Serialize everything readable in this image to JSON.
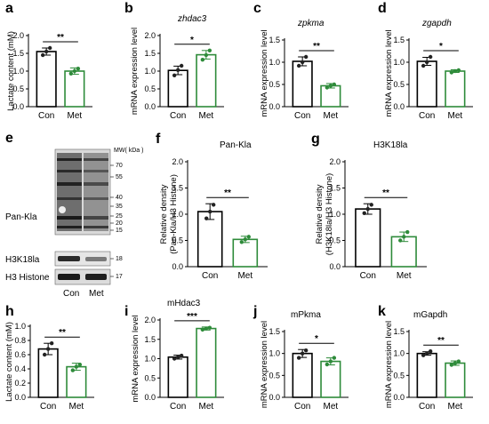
{
  "colors": {
    "control": "#000000",
    "treatment": "#2e8b3a",
    "dot_ctrl": "#222222",
    "dot_treat": "#2e8b3a"
  },
  "blot": {
    "letter": "e",
    "mw_header": "MW( kDa )",
    "markers": [
      "70",
      "55",
      "40",
      "35",
      "25",
      "20",
      "15",
      "18",
      "17"
    ],
    "row_labels": [
      "Pan-Kla",
      "H3K18la",
      "H3 Histone"
    ],
    "lanes": [
      "Con",
      "Met"
    ]
  },
  "chart_data": [
    {
      "id": "a",
      "type": "bar",
      "title": "",
      "title_italic": false,
      "ylabel": "Lactate content (mM)",
      "categories": [
        "Con",
        "Met"
      ],
      "values": [
        1.55,
        1.0
      ],
      "errors": [
        0.1,
        0.09
      ],
      "points": [
        [
          1.45,
          1.55,
          1.65
        ],
        [
          0.93,
          1.0,
          1.07
        ]
      ],
      "ylim": [
        0,
        2.0
      ],
      "yticks": [
        "0.0",
        "0.5",
        "1.0",
        "1.5",
        "2.0"
      ],
      "sig": "**"
    },
    {
      "id": "b",
      "type": "bar",
      "title": "zhdac3",
      "title_italic": true,
      "ylabel": "mRNA expression level",
      "categories": [
        "Con",
        "Met"
      ],
      "values": [
        1.02,
        1.46
      ],
      "errors": [
        0.12,
        0.12
      ],
      "points": [
        [
          0.88,
          1.03,
          1.15
        ],
        [
          1.32,
          1.45,
          1.58
        ]
      ],
      "ylim": [
        0,
        2.0
      ],
      "yticks": [
        "0.0",
        "0.5",
        "1.0",
        "1.5",
        "2.0"
      ],
      "sig": "*"
    },
    {
      "id": "c",
      "type": "bar",
      "title": "zpkma",
      "title_italic": true,
      "ylabel": "mRNA expression level",
      "categories": [
        "Con",
        "Met"
      ],
      "values": [
        1.02,
        0.47
      ],
      "errors": [
        0.1,
        0.05
      ],
      "points": [
        [
          0.92,
          1.0,
          1.12
        ],
        [
          0.43,
          0.47,
          0.5
        ]
      ],
      "ylim": [
        0,
        1.5
      ],
      "yticks": [
        "0.0",
        "0.5",
        "1.0",
        "1.5"
      ],
      "sig": "**"
    },
    {
      "id": "d",
      "type": "bar",
      "title": "zgapdh",
      "title_italic": true,
      "ylabel": "mRNA expression level",
      "categories": [
        "Con",
        "Met"
      ],
      "values": [
        1.02,
        0.8
      ],
      "errors": [
        0.09,
        0.03
      ],
      "points": [
        [
          0.92,
          1.0,
          1.12
        ],
        [
          0.77,
          0.8,
          0.82
        ]
      ],
      "ylim": [
        0,
        1.5
      ],
      "yticks": [
        "0.0",
        "0.5",
        "1.0",
        "1.5"
      ],
      "sig": "*"
    },
    {
      "id": "f",
      "type": "bar",
      "title": "Pan-Kla",
      "title_italic": false,
      "ylabel": "Relative density (Pan-Kla/H3 Histone)",
      "ylabel_lines": [
        "Relative density",
        "(Pan-Kla/H3 Histone)"
      ],
      "categories": [
        "Con",
        "Met"
      ],
      "values": [
        1.05,
        0.52
      ],
      "errors": [
        0.15,
        0.06
      ],
      "points": [
        [
          0.92,
          1.05,
          1.18
        ],
        [
          0.47,
          0.52,
          0.57
        ]
      ],
      "ylim": [
        0,
        2.0
      ],
      "yticks": [
        "0.0",
        "0.5",
        "1.0",
        "1.5",
        "2.0"
      ],
      "sig": "**"
    },
    {
      "id": "g",
      "type": "bar",
      "title": "H3K18la",
      "title_italic": false,
      "ylabel": "Relative density (H3K18la/H3 Histone)",
      "ylabel_lines": [
        "Relative density",
        "(H3K18la/H3 Histone)"
      ],
      "categories": [
        "Con",
        "Met"
      ],
      "values": [
        1.1,
        0.57
      ],
      "errors": [
        0.1,
        0.09
      ],
      "points": [
        [
          1.02,
          1.1,
          1.18
        ],
        [
          0.5,
          0.57,
          0.66
        ]
      ],
      "ylim": [
        0,
        2.0
      ],
      "yticks": [
        "0.0",
        "0.5",
        "1.0",
        "1.5",
        "2.0"
      ],
      "sig": "**"
    },
    {
      "id": "h",
      "type": "bar",
      "title": "",
      "title_italic": false,
      "ylabel": "Lactate content (mM)",
      "categories": [
        "Con",
        "Met"
      ],
      "values": [
        0.68,
        0.43
      ],
      "errors": [
        0.08,
        0.05
      ],
      "points": [
        [
          0.6,
          0.68,
          0.76
        ],
        [
          0.38,
          0.43,
          0.46
        ]
      ],
      "ylim": [
        0,
        1.0
      ],
      "yticks": [
        "0.0",
        "0.2",
        "0.4",
        "0.6",
        "0.8",
        "1.0"
      ],
      "sig": "**"
    },
    {
      "id": "i",
      "type": "bar",
      "title": "mHdac3",
      "title_italic": false,
      "ylabel": "mRNA expression level",
      "categories": [
        "Con",
        "Met"
      ],
      "values": [
        1.04,
        1.78
      ],
      "errors": [
        0.05,
        0.04
      ],
      "points": [
        [
          1.0,
          1.04,
          1.08
        ],
        [
          1.75,
          1.78,
          1.8
        ]
      ],
      "ylim": [
        0,
        2.0
      ],
      "yticks": [
        "0.0",
        "0.5",
        "1.0",
        "1.5",
        "2.0"
      ],
      "sig": "***"
    },
    {
      "id": "j",
      "type": "bar",
      "title": "mPkma",
      "title_italic": false,
      "ylabel": "mRNA expression level",
      "categories": [
        "Con",
        "Met"
      ],
      "values": [
        1.0,
        0.82
      ],
      "errors": [
        0.09,
        0.08
      ],
      "points": [
        [
          0.9,
          1.0,
          1.07
        ],
        [
          0.75,
          0.82,
          0.9
        ]
      ],
      "ylim": [
        0,
        1.5
      ],
      "yticks": [
        "0.0",
        "0.5",
        "1.0",
        "1.5"
      ],
      "sig": "*"
    },
    {
      "id": "k",
      "type": "bar",
      "title": "mGapdh",
      "title_italic": false,
      "ylabel": "mRNA expression level",
      "categories": [
        "Con",
        "Met"
      ],
      "values": [
        1.0,
        0.78
      ],
      "errors": [
        0.04,
        0.05
      ],
      "points": [
        [
          0.96,
          1.0,
          1.05
        ],
        [
          0.74,
          0.78,
          0.82
        ]
      ],
      "ylim": [
        0,
        1.5
      ],
      "yticks": [
        "0.0",
        "0.5",
        "1.0",
        "1.5"
      ],
      "sig": "**"
    }
  ]
}
